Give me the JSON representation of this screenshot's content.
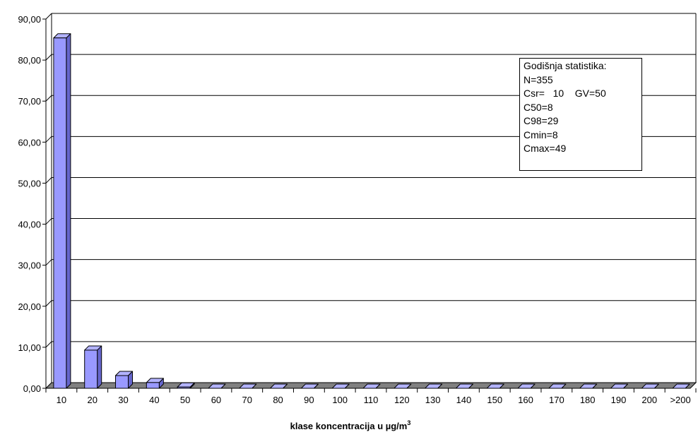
{
  "chart_data": {
    "type": "bar",
    "categories": [
      "10",
      "20",
      "30",
      "40",
      "50",
      "60",
      "70",
      "80",
      "90",
      "100",
      "110",
      "120",
      "130",
      "140",
      "150",
      "160",
      "170",
      "180",
      "190",
      "200",
      ">200"
    ],
    "values": [
      85.4,
      9.3,
      3.1,
      1.4,
      0.3,
      0,
      0,
      0,
      0,
      0,
      0,
      0,
      0,
      0,
      0,
      0,
      0,
      0,
      0,
      0,
      0
    ],
    "ylim": [
      0,
      90
    ],
    "yticks": [
      "0,00",
      "10,00",
      "20,00",
      "30,00",
      "40,00",
      "50,00",
      "60,00",
      "70,00",
      "80,00",
      "90,00"
    ],
    "xlabel": "klase koncentracija u µg/m",
    "xlabel_sup": "3",
    "grid": true,
    "bar_color": "#9999FF",
    "bar_side_color": "#6666CC",
    "bar_top_color": "#B3B3FF",
    "floor_color": "#808080",
    "annotation": {
      "lines": [
        "Godišnja statistika:",
        "N=355",
        "Csr=   10    GV=50",
        "C50=8",
        "C98=29",
        "Cmin=8",
        "Cmax=49"
      ]
    }
  }
}
